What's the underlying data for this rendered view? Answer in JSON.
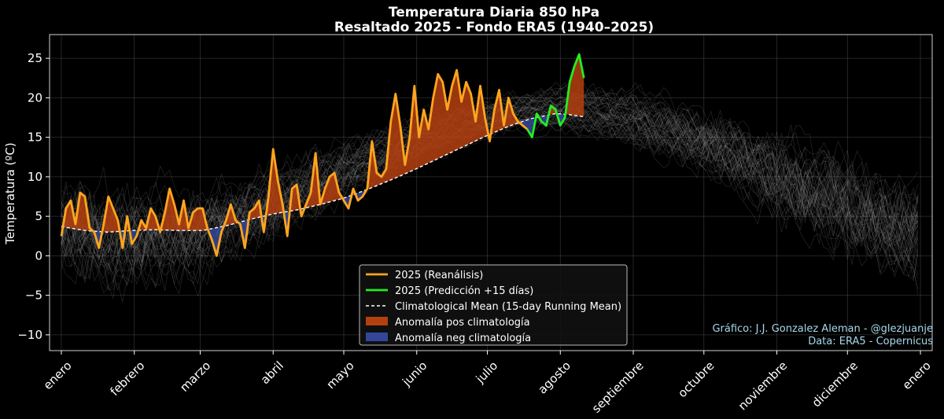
{
  "chart_data": {
    "type": "line",
    "title": "Temperatura Diaria 850 hPa",
    "subtitle": "Resaltado 2025 - Fondo ERA5 (1940–2025)",
    "xlabel": "",
    "ylabel": "Temperatura (ºC)",
    "ylim": [
      -12,
      28
    ],
    "xlim": [
      -5,
      370
    ],
    "yticks": [
      -10,
      -5,
      0,
      5,
      10,
      15,
      20,
      25
    ],
    "ytick_labels": [
      "−10",
      "−5",
      "0",
      "5",
      "10",
      "15",
      "20",
      "25"
    ],
    "x_ticks": [
      {
        "label": "enero",
        "day": 0
      },
      {
        "label": "febrero",
        "day": 31
      },
      {
        "label": "marzo",
        "day": 59
      },
      {
        "label": "abril",
        "day": 90
      },
      {
        "label": "mayo",
        "day": 120
      },
      {
        "label": "junio",
        "day": 151
      },
      {
        "label": "julio",
        "day": 181
      },
      {
        "label": "agosto",
        "day": 212
      },
      {
        "label": "septiembre",
        "day": 243
      },
      {
        "label": "octubre",
        "day": 273
      },
      {
        "label": "noviembre",
        "day": 304
      },
      {
        "label": "diciembre",
        "day": 334
      },
      {
        "label": "enero",
        "day": 365
      }
    ],
    "grid": true,
    "background_years": "1940–2025",
    "legend_position": "bottom-center",
    "colors": {
      "reanalysis": "#ffa51e",
      "prediction": "#22ee22",
      "mean": "#ffffff",
      "pos_anomaly": "#b5400f",
      "neg_anomaly": "#33479a",
      "background": "#9a9a9a",
      "credit": "#a8d8ea"
    },
    "series": [
      {
        "name": "2025 (Reanálisis)",
        "x": [
          0,
          2,
          4,
          6,
          8,
          10,
          12,
          14,
          16,
          18,
          20,
          22,
          24,
          26,
          28,
          30,
          32,
          34,
          36,
          38,
          40,
          42,
          44,
          46,
          48,
          50,
          52,
          54,
          56,
          58,
          60,
          62,
          64,
          66,
          68,
          70,
          72,
          74,
          76,
          78,
          80,
          82,
          84,
          86,
          88,
          90,
          92,
          94,
          96,
          98,
          100,
          102,
          104,
          106,
          108,
          110,
          112,
          114,
          116,
          118,
          120,
          122,
          124,
          126,
          128,
          130,
          132,
          134,
          136,
          138,
          140,
          142,
          144,
          146,
          148,
          150,
          152,
          154,
          156,
          158,
          160,
          162,
          164,
          166,
          168,
          170,
          172,
          174,
          176,
          178,
          180,
          182,
          184,
          186,
          188,
          190,
          192,
          194,
          196,
          198
        ],
        "y": [
          2.5,
          6.0,
          7.0,
          4.0,
          8.0,
          7.5,
          3.5,
          3.0,
          1.0,
          4.0,
          7.5,
          6.0,
          4.5,
          1.0,
          5.0,
          1.5,
          2.5,
          4.5,
          3.5,
          6.0,
          5.0,
          3.0,
          5.5,
          8.5,
          6.5,
          4.0,
          7.0,
          3.5,
          5.5,
          6.0,
          6.0,
          3.5,
          2.0,
          0.0,
          3.0,
          4.5,
          6.5,
          4.5,
          4.0,
          1.0,
          5.5,
          6.0,
          7.0,
          3.0,
          7.5,
          13.5,
          9.5,
          6.5,
          2.5,
          8.5,
          9.0,
          5.0,
          6.5,
          8.0,
          13.0,
          6.5,
          8.5,
          10.0,
          10.5,
          8.0,
          7.0,
          6.0,
          8.5,
          7.0,
          7.5,
          8.5,
          14.5,
          10.5,
          10.0,
          11.0,
          17.0,
          20.5,
          16.5,
          11.5,
          15.0,
          21.5,
          15.0,
          18.5,
          16.0,
          20.0,
          23.0,
          22.0,
          18.5,
          21.5,
          23.5,
          19.5,
          22.0,
          20.5,
          17.0,
          21.5,
          17.5,
          14.5,
          18.5,
          21.0,
          16.5,
          20.0,
          18.0,
          17.0,
          16.5,
          16.0
        ]
      },
      {
        "name": "2025 (Predicción +15 días)",
        "x": [
          198,
          200,
          202,
          204,
          206,
          208,
          210,
          212,
          214,
          216,
          218,
          220,
          222
        ],
        "y": [
          16.0,
          15.0,
          18.0,
          17.0,
          16.5,
          19.0,
          18.5,
          16.5,
          17.5,
          22.0,
          24.0,
          25.5,
          22.5
        ]
      },
      {
        "name": "Climatological Mean (15-day Running Mean)",
        "x": [
          0,
          10,
          20,
          30,
          40,
          50,
          60,
          70,
          80,
          90,
          100,
          110,
          120,
          130,
          140,
          150,
          160,
          170,
          180,
          190,
          200,
          210,
          215,
          222
        ],
        "y": [
          3.7,
          3.2,
          3.0,
          3.2,
          3.3,
          3.2,
          3.2,
          3.8,
          4.6,
          5.3,
          5.8,
          6.5,
          7.3,
          8.4,
          9.6,
          10.9,
          12.3,
          13.7,
          15.1,
          16.4,
          17.4,
          18.0,
          17.9,
          17.6
        ]
      }
    ],
    "legend": [
      {
        "label": "2025 (Reanálisis)",
        "kind": "line",
        "key": "reanalysis"
      },
      {
        "label": "2025 (Predicción +15 días)",
        "kind": "line",
        "key": "prediction"
      },
      {
        "label": "Climatological Mean (15-day Running Mean)",
        "kind": "dash",
        "key": "mean"
      },
      {
        "label": "Anomalía pos climatología",
        "kind": "patch",
        "key": "pos_anomaly"
      },
      {
        "label": "Anomalía neg climatología",
        "kind": "patch",
        "key": "neg_anomaly"
      }
    ],
    "annotations": [
      "Gráfico: J.J. Gonzalez Aleman - @glezjuanje",
      "Data: ERA5 - Copernicus"
    ]
  }
}
